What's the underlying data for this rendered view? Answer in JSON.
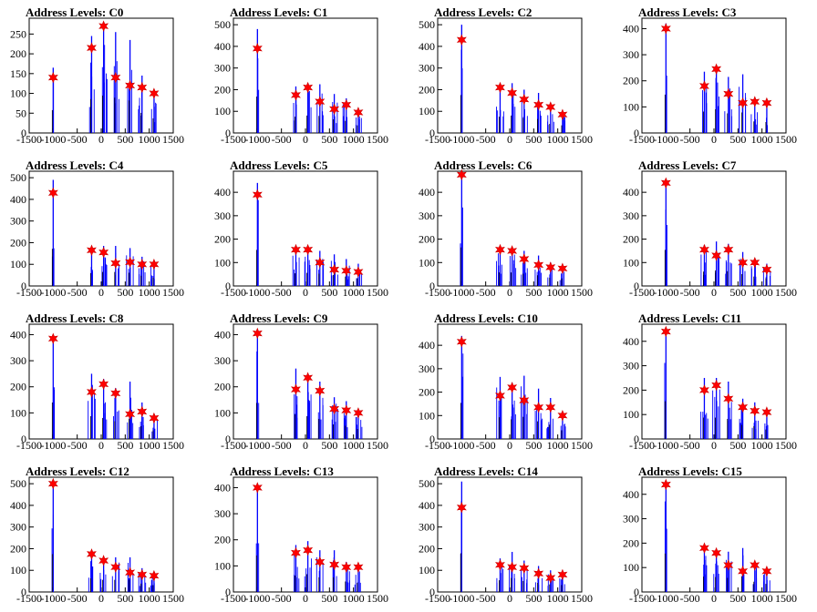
{
  "chart_data": {
    "type": "histogram",
    "xlim": [
      -1500,
      1500
    ],
    "x_ticks": [
      "-1500",
      "-1000",
      "-500",
      "0",
      "500",
      "1000",
      "1500"
    ],
    "colors": {
      "histogram": "#0000ff",
      "marker": "#ff0000"
    },
    "panels": [
      {
        "title": "Address Levels: C0",
        "ylim": [
          0,
          290
        ],
        "y_ticks": [
          0,
          50,
          100,
          150,
          200,
          250
        ],
        "peaks": [
          [
            -1000,
            165
          ],
          [
            -200,
            245
          ],
          [
            50,
            270
          ],
          [
            300,
            255
          ],
          [
            600,
            235
          ],
          [
            850,
            145
          ],
          [
            1100,
            105
          ]
        ],
        "markers": [
          [
            -1000,
            140
          ],
          [
            -200,
            215
          ],
          [
            50,
            270
          ],
          [
            300,
            140
          ],
          [
            600,
            120
          ],
          [
            850,
            115
          ],
          [
            1100,
            100
          ]
        ]
      },
      {
        "title": "Address Levels: C1",
        "ylim": [
          0,
          530
        ],
        "y_ticks": [
          0,
          100,
          200,
          300,
          400,
          500
        ],
        "peaks": [
          [
            -1000,
            480
          ],
          [
            -200,
            215
          ],
          [
            50,
            230
          ],
          [
            300,
            225
          ],
          [
            600,
            180
          ],
          [
            850,
            160
          ],
          [
            1100,
            100
          ]
        ],
        "markers": [
          [
            -1000,
            390
          ],
          [
            -200,
            175
          ],
          [
            50,
            210
          ],
          [
            300,
            145
          ],
          [
            600,
            110
          ],
          [
            850,
            130
          ],
          [
            1100,
            95
          ]
        ]
      },
      {
        "title": "Address Levels: C2",
        "ylim": [
          0,
          530
        ],
        "y_ticks": [
          0,
          100,
          200,
          300,
          400,
          500
        ],
        "peaks": [
          [
            -1000,
            500
          ],
          [
            -200,
            215
          ],
          [
            50,
            230
          ],
          [
            300,
            200
          ],
          [
            600,
            185
          ],
          [
            850,
            120
          ],
          [
            1100,
            100
          ]
        ],
        "markers": [
          [
            -1000,
            430
          ],
          [
            -200,
            210
          ],
          [
            50,
            185
          ],
          [
            300,
            155
          ],
          [
            600,
            130
          ],
          [
            850,
            120
          ],
          [
            1100,
            85
          ]
        ]
      },
      {
        "title": "Address Levels: C3",
        "ylim": [
          0,
          440
        ],
        "y_ticks": [
          0,
          100,
          200,
          300,
          400
        ],
        "peaks": [
          [
            -1000,
            420
          ],
          [
            -200,
            235
          ],
          [
            50,
            260
          ],
          [
            300,
            215
          ],
          [
            600,
            225
          ],
          [
            850,
            125
          ],
          [
            1100,
            120
          ]
        ],
        "markers": [
          [
            -1000,
            400
          ],
          [
            -200,
            180
          ],
          [
            50,
            245
          ],
          [
            300,
            150
          ],
          [
            600,
            115
          ],
          [
            850,
            120
          ],
          [
            1100,
            115
          ]
        ]
      },
      {
        "title": "Address Levels: C4",
        "ylim": [
          0,
          530
        ],
        "y_ticks": [
          0,
          100,
          200,
          300,
          400,
          500
        ],
        "peaks": [
          [
            -1000,
            490
          ],
          [
            -200,
            170
          ],
          [
            50,
            185
          ],
          [
            300,
            185
          ],
          [
            600,
            175
          ],
          [
            850,
            135
          ],
          [
            1100,
            110
          ]
        ],
        "markers": [
          [
            -1000,
            430
          ],
          [
            -200,
            165
          ],
          [
            50,
            155
          ],
          [
            300,
            105
          ],
          [
            600,
            110
          ],
          [
            850,
            100
          ],
          [
            1100,
            100
          ]
        ]
      },
      {
        "title": "Address Levels: C5",
        "ylim": [
          0,
          490
        ],
        "y_ticks": [
          0,
          100,
          200,
          300,
          400
        ],
        "peaks": [
          [
            -1000,
            440
          ],
          [
            -200,
            155
          ],
          [
            50,
            160
          ],
          [
            300,
            150
          ],
          [
            600,
            135
          ],
          [
            850,
            115
          ],
          [
            1100,
            95
          ]
        ],
        "markers": [
          [
            -1000,
            390
          ],
          [
            -200,
            155
          ],
          [
            50,
            155
          ],
          [
            300,
            100
          ],
          [
            600,
            70
          ],
          [
            850,
            65
          ],
          [
            1100,
            60
          ]
        ]
      },
      {
        "title": "Address Levels: C6",
        "ylim": [
          0,
          490
        ],
        "y_ticks": [
          0,
          100,
          200,
          300,
          400
        ],
        "peaks": [
          [
            -1000,
            470
          ],
          [
            -200,
            165
          ],
          [
            50,
            165
          ],
          [
            300,
            150
          ],
          [
            600,
            130
          ],
          [
            850,
            100
          ],
          [
            1100,
            90
          ]
        ],
        "markers": [
          [
            -1000,
            475
          ],
          [
            -200,
            155
          ],
          [
            50,
            150
          ],
          [
            300,
            115
          ],
          [
            600,
            90
          ],
          [
            850,
            80
          ],
          [
            1100,
            75
          ]
        ]
      },
      {
        "title": "Address Levels: C7",
        "ylim": [
          0,
          490
        ],
        "y_ticks": [
          0,
          100,
          200,
          300,
          400
        ],
        "peaks": [
          [
            -1000,
            440
          ],
          [
            -200,
            175
          ],
          [
            50,
            190
          ],
          [
            300,
            180
          ],
          [
            600,
            145
          ],
          [
            850,
            115
          ],
          [
            1100,
            95
          ]
        ],
        "markers": [
          [
            -1000,
            440
          ],
          [
            -200,
            155
          ],
          [
            50,
            130
          ],
          [
            300,
            155
          ],
          [
            600,
            100
          ],
          [
            850,
            100
          ],
          [
            1100,
            70
          ]
        ]
      },
      {
        "title": "Address Levels: C8",
        "ylim": [
          0,
          440
        ],
        "y_ticks": [
          0,
          100,
          200,
          300,
          400
        ],
        "peaks": [
          [
            -1000,
            400
          ],
          [
            -200,
            250
          ],
          [
            50,
            230
          ],
          [
            300,
            195
          ],
          [
            600,
            220
          ],
          [
            850,
            140
          ],
          [
            1100,
            95
          ]
        ],
        "markers": [
          [
            -1000,
            385
          ],
          [
            -200,
            180
          ],
          [
            50,
            210
          ],
          [
            300,
            175
          ],
          [
            600,
            95
          ],
          [
            850,
            105
          ],
          [
            1100,
            80
          ]
        ]
      },
      {
        "title": "Address Levels: C9",
        "ylim": [
          0,
          440
        ],
        "y_ticks": [
          0,
          100,
          200,
          300,
          400
        ],
        "peaks": [
          [
            -1000,
            395
          ],
          [
            -200,
            270
          ],
          [
            50,
            250
          ],
          [
            300,
            220
          ],
          [
            600,
            160
          ],
          [
            850,
            145
          ],
          [
            1100,
            110
          ]
        ],
        "markers": [
          [
            -1000,
            405
          ],
          [
            -200,
            190
          ],
          [
            50,
            235
          ],
          [
            300,
            185
          ],
          [
            600,
            115
          ],
          [
            850,
            110
          ],
          [
            1100,
            100
          ]
        ]
      },
      {
        "title": "Address Levels: C10",
        "ylim": [
          0,
          490
        ],
        "y_ticks": [
          0,
          100,
          200,
          300,
          400
        ],
        "peaks": [
          [
            -1000,
            440
          ],
          [
            -200,
            265
          ],
          [
            50,
            240
          ],
          [
            300,
            270
          ],
          [
            600,
            215
          ],
          [
            850,
            175
          ],
          [
            1100,
            105
          ]
        ],
        "markers": [
          [
            -1000,
            415
          ],
          [
            -200,
            185
          ],
          [
            50,
            220
          ],
          [
            300,
            165
          ],
          [
            600,
            135
          ],
          [
            850,
            135
          ],
          [
            1100,
            100
          ]
        ]
      },
      {
        "title": "Address Levels: C11",
        "ylim": [
          0,
          470
        ],
        "y_ticks": [
          0,
          100,
          200,
          300,
          400
        ],
        "peaks": [
          [
            -1000,
            440
          ],
          [
            -200,
            250
          ],
          [
            50,
            250
          ],
          [
            300,
            235
          ],
          [
            600,
            165
          ],
          [
            850,
            150
          ],
          [
            1100,
            110
          ]
        ],
        "markers": [
          [
            -1000,
            440
          ],
          [
            -200,
            200
          ],
          [
            50,
            220
          ],
          [
            300,
            165
          ],
          [
            600,
            130
          ],
          [
            850,
            115
          ],
          [
            1100,
            110
          ]
        ]
      },
      {
        "title": "Address Levels: C12",
        "ylim": [
          0,
          530
        ],
        "y_ticks": [
          0,
          100,
          200,
          300,
          400,
          500
        ],
        "peaks": [
          [
            -1000,
            500
          ],
          [
            -200,
            180
          ],
          [
            50,
            160
          ],
          [
            300,
            160
          ],
          [
            600,
            160
          ],
          [
            850,
            110
          ],
          [
            1100,
            90
          ]
        ],
        "markers": [
          [
            -1000,
            500
          ],
          [
            -200,
            175
          ],
          [
            50,
            145
          ],
          [
            300,
            115
          ],
          [
            600,
            90
          ],
          [
            850,
            80
          ],
          [
            1100,
            75
          ]
        ]
      },
      {
        "title": "Address Levels: C13",
        "ylim": [
          0,
          440
        ],
        "y_ticks": [
          0,
          100,
          200,
          300,
          400
        ],
        "peaks": [
          [
            -1000,
            400
          ],
          [
            -200,
            180
          ],
          [
            50,
            195
          ],
          [
            300,
            160
          ],
          [
            600,
            160
          ],
          [
            850,
            115
          ],
          [
            1100,
            100
          ]
        ],
        "markers": [
          [
            -1000,
            400
          ],
          [
            -200,
            150
          ],
          [
            50,
            160
          ],
          [
            300,
            115
          ],
          [
            600,
            105
          ],
          [
            850,
            95
          ],
          [
            1100,
            95
          ]
        ]
      },
      {
        "title": "Address Levels: C14",
        "ylim": [
          0,
          530
        ],
        "y_ticks": [
          0,
          100,
          200,
          300,
          400,
          500
        ],
        "peaks": [
          [
            -1000,
            510
          ],
          [
            -200,
            155
          ],
          [
            50,
            185
          ],
          [
            300,
            145
          ],
          [
            600,
            120
          ],
          [
            850,
            100
          ],
          [
            1100,
            90
          ]
        ],
        "markers": [
          [
            -1000,
            390
          ],
          [
            -200,
            125
          ],
          [
            50,
            115
          ],
          [
            300,
            110
          ],
          [
            600,
            85
          ],
          [
            850,
            65
          ],
          [
            1100,
            80
          ]
        ]
      },
      {
        "title": "Address Levels: C15",
        "ylim": [
          0,
          470
        ],
        "y_ticks": [
          0,
          100,
          200,
          300,
          400
        ],
        "peaks": [
          [
            -1000,
            450
          ],
          [
            -200,
            180
          ],
          [
            50,
            175
          ],
          [
            300,
            165
          ],
          [
            600,
            180
          ],
          [
            850,
            120
          ],
          [
            1100,
            95
          ]
        ],
        "markers": [
          [
            -1000,
            440
          ],
          [
            -200,
            180
          ],
          [
            50,
            160
          ],
          [
            300,
            110
          ],
          [
            600,
            85
          ],
          [
            850,
            110
          ],
          [
            1100,
            85
          ]
        ]
      }
    ]
  }
}
